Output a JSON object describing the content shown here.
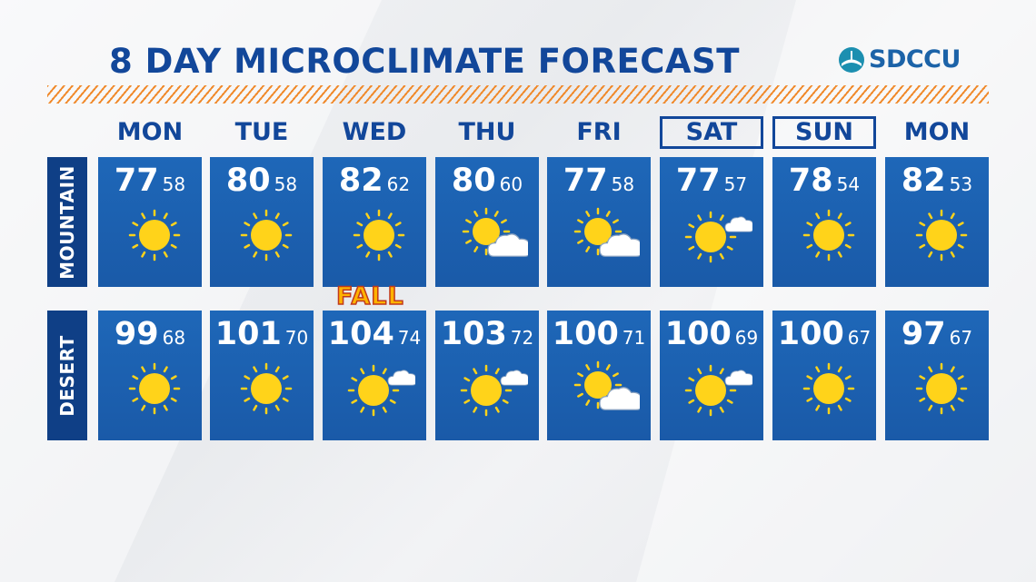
{
  "title": "8 DAY MICROCLIMATE FORECAST",
  "logo": {
    "text": "SDCCU",
    "icon": "sdccu-logo-icon"
  },
  "colors": {
    "title": "#12479a",
    "tile": "#1c62b2",
    "label_bar": "#0f3f86",
    "stripe": "#f08a2c",
    "sun": "#ffd31a"
  },
  "days": [
    {
      "label": "MON",
      "boxed": false
    },
    {
      "label": "TUE",
      "boxed": false
    },
    {
      "label": "WED",
      "boxed": false
    },
    {
      "label": "THU",
      "boxed": false
    },
    {
      "label": "FRI",
      "boxed": false
    },
    {
      "label": "SAT",
      "boxed": true
    },
    {
      "label": "SUN",
      "boxed": true
    },
    {
      "label": "MON",
      "boxed": false
    }
  ],
  "badge": {
    "text": "FALL"
  },
  "rows": [
    {
      "label": "MOUNTAIN",
      "cells": [
        {
          "hi": "77",
          "lo": "58",
          "icon": "sun-icon"
        },
        {
          "hi": "80",
          "lo": "58",
          "icon": "sun-icon"
        },
        {
          "hi": "82",
          "lo": "62",
          "icon": "sun-icon"
        },
        {
          "hi": "80",
          "lo": "60",
          "icon": "partly-cloudy-icon"
        },
        {
          "hi": "77",
          "lo": "58",
          "icon": "partly-cloudy-icon"
        },
        {
          "hi": "77",
          "lo": "57",
          "icon": "mostly-sunny-icon"
        },
        {
          "hi": "78",
          "lo": "54",
          "icon": "sun-icon"
        },
        {
          "hi": "82",
          "lo": "53",
          "icon": "sun-icon"
        }
      ]
    },
    {
      "label": "DESERT",
      "cells": [
        {
          "hi": "99",
          "lo": "68",
          "icon": "sun-icon"
        },
        {
          "hi": "101",
          "lo": "70",
          "icon": "sun-icon"
        },
        {
          "hi": "104",
          "lo": "74",
          "icon": "mostly-sunny-icon"
        },
        {
          "hi": "103",
          "lo": "72",
          "icon": "mostly-sunny-icon"
        },
        {
          "hi": "100",
          "lo": "71",
          "icon": "partly-cloudy-icon"
        },
        {
          "hi": "100",
          "lo": "69",
          "icon": "mostly-sunny-icon"
        },
        {
          "hi": "100",
          "lo": "67",
          "icon": "sun-icon"
        },
        {
          "hi": "97",
          "lo": "67",
          "icon": "sun-icon"
        }
      ]
    }
  ]
}
